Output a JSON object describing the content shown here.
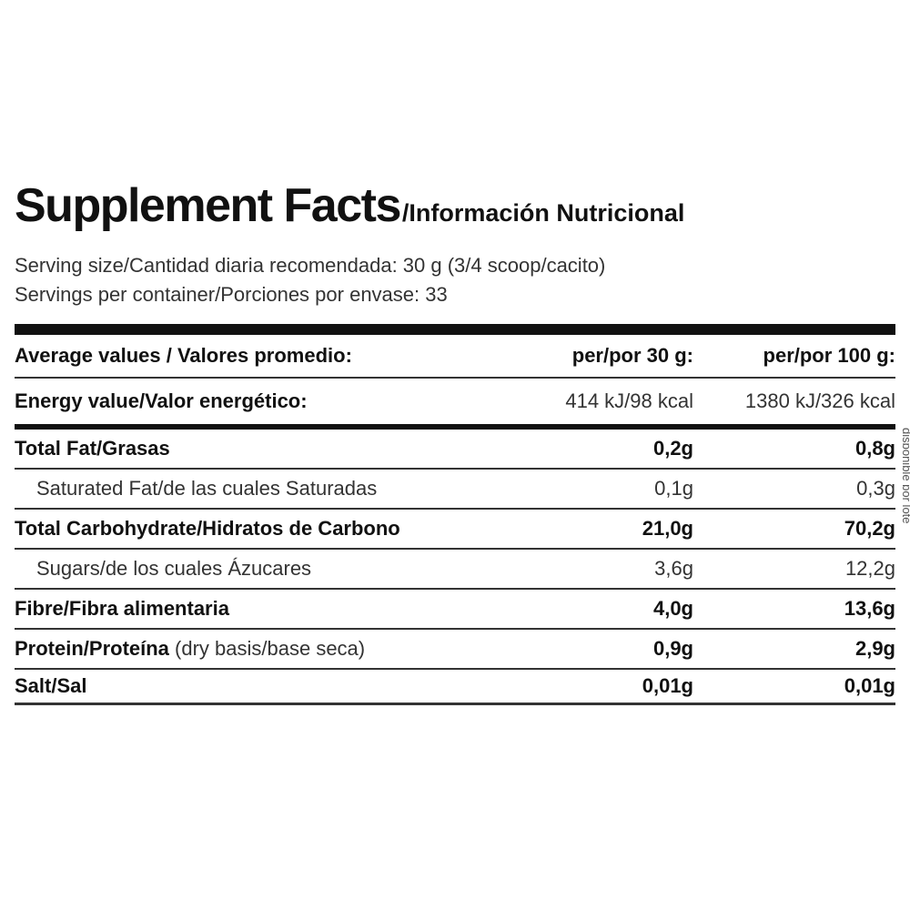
{
  "title": {
    "main": "Supplement Facts",
    "sub": "/Información Nutricional"
  },
  "serving": {
    "size": "Serving size/Cantidad diaria recomendada: 30 g (3/4 scoop/cacito)",
    "per_container": "Servings per container/Porciones por envase: 33"
  },
  "table": {
    "header": {
      "label": "Average values / Valores promedio:",
      "col1": "per/por 30 g:",
      "col2": "per/por 100 g:"
    },
    "energy": {
      "label": "Energy value/Valor energético:",
      "v1": "414 kJ/98 kcal",
      "v2": "1380 kJ/326 kcal"
    },
    "rows": [
      {
        "label": "Total Fat/Grasas",
        "v1": "0,2g",
        "v2": "0,8g"
      },
      {
        "label": "Saturated Fat/de las cuales Saturadas",
        "v1": "0,1g",
        "v2": "0,3g"
      },
      {
        "label": "Total Carbohydrate/Hidratos de Carbono",
        "v1": "21,0g",
        "v2": "70,2g"
      },
      {
        "label": "Sugars/de los cuales Ázucares",
        "v1": "3,6g",
        "v2": "12,2g"
      },
      {
        "label": "Fibre/Fibra alimentaria",
        "v1": "4,0g",
        "v2": "13,6g"
      },
      {
        "label": "Protein/Proteína",
        "qualifier": " (dry basis/base seca)",
        "v1": "0,9g",
        "v2": "2,9g"
      },
      {
        "label": "Salt/Sal",
        "v1": "0,01g",
        "v2": "0,01g"
      }
    ]
  },
  "side_text": "disponible por lote"
}
